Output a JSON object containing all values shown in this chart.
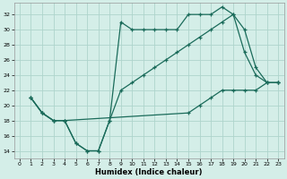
{
  "xlabel": "Humidex (Indice chaleur)",
  "bg_color": "#d4eee8",
  "grid_color": "#aed4cc",
  "line_color": "#1a6b5a",
  "xlim": [
    -0.5,
    23.5
  ],
  "ylim": [
    13,
    33.5
  ],
  "xticks": [
    0,
    1,
    2,
    3,
    4,
    5,
    6,
    7,
    8,
    9,
    10,
    11,
    12,
    13,
    14,
    15,
    16,
    17,
    18,
    19,
    20,
    21,
    22,
    23
  ],
  "yticks": [
    14,
    16,
    18,
    20,
    22,
    24,
    26,
    28,
    30,
    32
  ],
  "line1_x": [
    1,
    2,
    3,
    4,
    5,
    6,
    7,
    8,
    9,
    10,
    11,
    12,
    13,
    14,
    15,
    16,
    17,
    18,
    19,
    20,
    21,
    22,
    23
  ],
  "line1_y": [
    21,
    19,
    18,
    18,
    15,
    14,
    14,
    18,
    31,
    30,
    30,
    30,
    30,
    30,
    32,
    32,
    32,
    33,
    32,
    27,
    24,
    23,
    23
  ],
  "line2_x": [
    1,
    2,
    3,
    4,
    5,
    6,
    7,
    8,
    9,
    10,
    11,
    12,
    13,
    14,
    15,
    16,
    17,
    18,
    19,
    20,
    21,
    22,
    23
  ],
  "line2_y": [
    21,
    19,
    18,
    18,
    15,
    14,
    14,
    18,
    22,
    23,
    24,
    25,
    26,
    27,
    28,
    29,
    30,
    31,
    32,
    30,
    25,
    23,
    23
  ],
  "line3_x": [
    1,
    2,
    3,
    4,
    15,
    16,
    17,
    18,
    19,
    20,
    21,
    22,
    23
  ],
  "line3_y": [
    21,
    19,
    18,
    18,
    19,
    20,
    21,
    22,
    22,
    22,
    22,
    23,
    23
  ]
}
